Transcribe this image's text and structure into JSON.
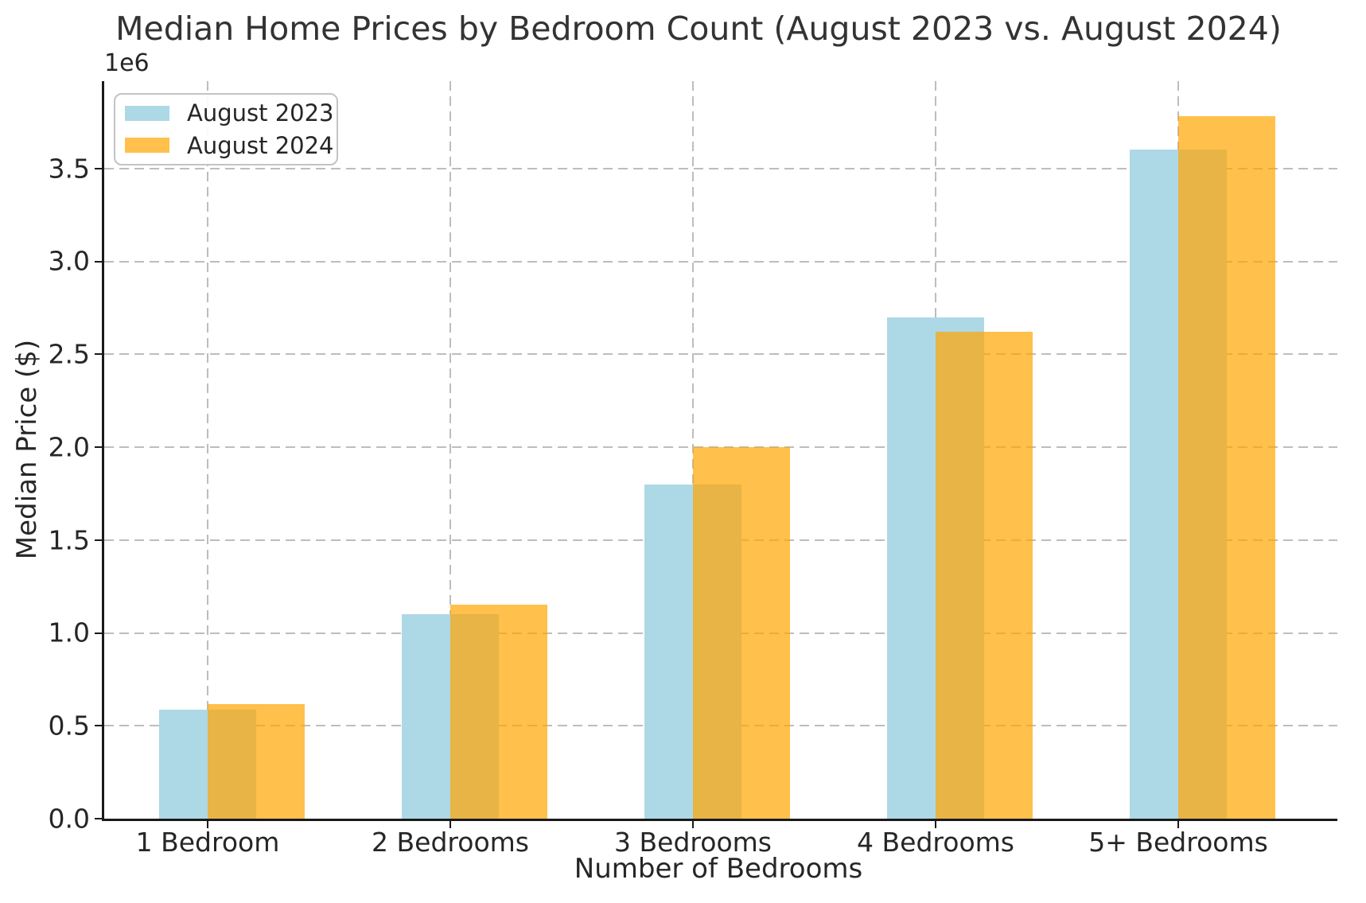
{
  "title": "Median Home Prices by Bedroom Count (August 2023 vs. August 2024)",
  "axes": {
    "x_label": "Number of Bedrooms",
    "y_label": "Median Price ($)",
    "y_offset_text": "1e6",
    "y_tick_labels": [
      "0.0",
      "0.5",
      "1.0",
      "1.5",
      "2.0",
      "2.5",
      "3.0",
      "3.5"
    ]
  },
  "legend": {
    "position": "upper left",
    "entries": [
      {
        "label": "August 2023",
        "color": "#ADD8E6"
      },
      {
        "label": "August 2024",
        "color": "rgba(255,165,0,0.7)"
      }
    ]
  },
  "colors": {
    "series_2023": "#ADD8E6",
    "series_2024_base": "#FFA500",
    "series_2024_rendered": "#FFC04C",
    "grid": "#bdbdbd",
    "spine": "#1a1a1a",
    "text": "#262626",
    "background": "#ffffff"
  },
  "chart_data": {
    "type": "bar",
    "title": "Median Home Prices by Bedroom Count (August 2023 vs. August 2024)",
    "xlabel": "Number of Bedrooms",
    "ylabel": "Median Price ($)",
    "categories": [
      "1 Bedroom",
      "2 Bedrooms",
      "3 Bedrooms",
      "4 Bedrooms",
      "5+ Bedrooms"
    ],
    "series": [
      {
        "name": "August 2023",
        "color": "#ADD8E6",
        "opacity": 1,
        "values": [
          585000,
          1100000,
          1800000,
          2700000,
          3600000
        ]
      },
      {
        "name": "August 2024",
        "color": "#FFA500",
        "opacity": 0.7,
        "values": [
          615000,
          1150000,
          2000000,
          2620000,
          3780000
        ]
      }
    ],
    "ylim": [
      0,
      3970000
    ],
    "ytick_step": 500000,
    "y_unit_multiplier": 1000000,
    "grid": true,
    "grid_style": "dashed",
    "legend_position": "upper left",
    "bar_style": "overlapping"
  }
}
